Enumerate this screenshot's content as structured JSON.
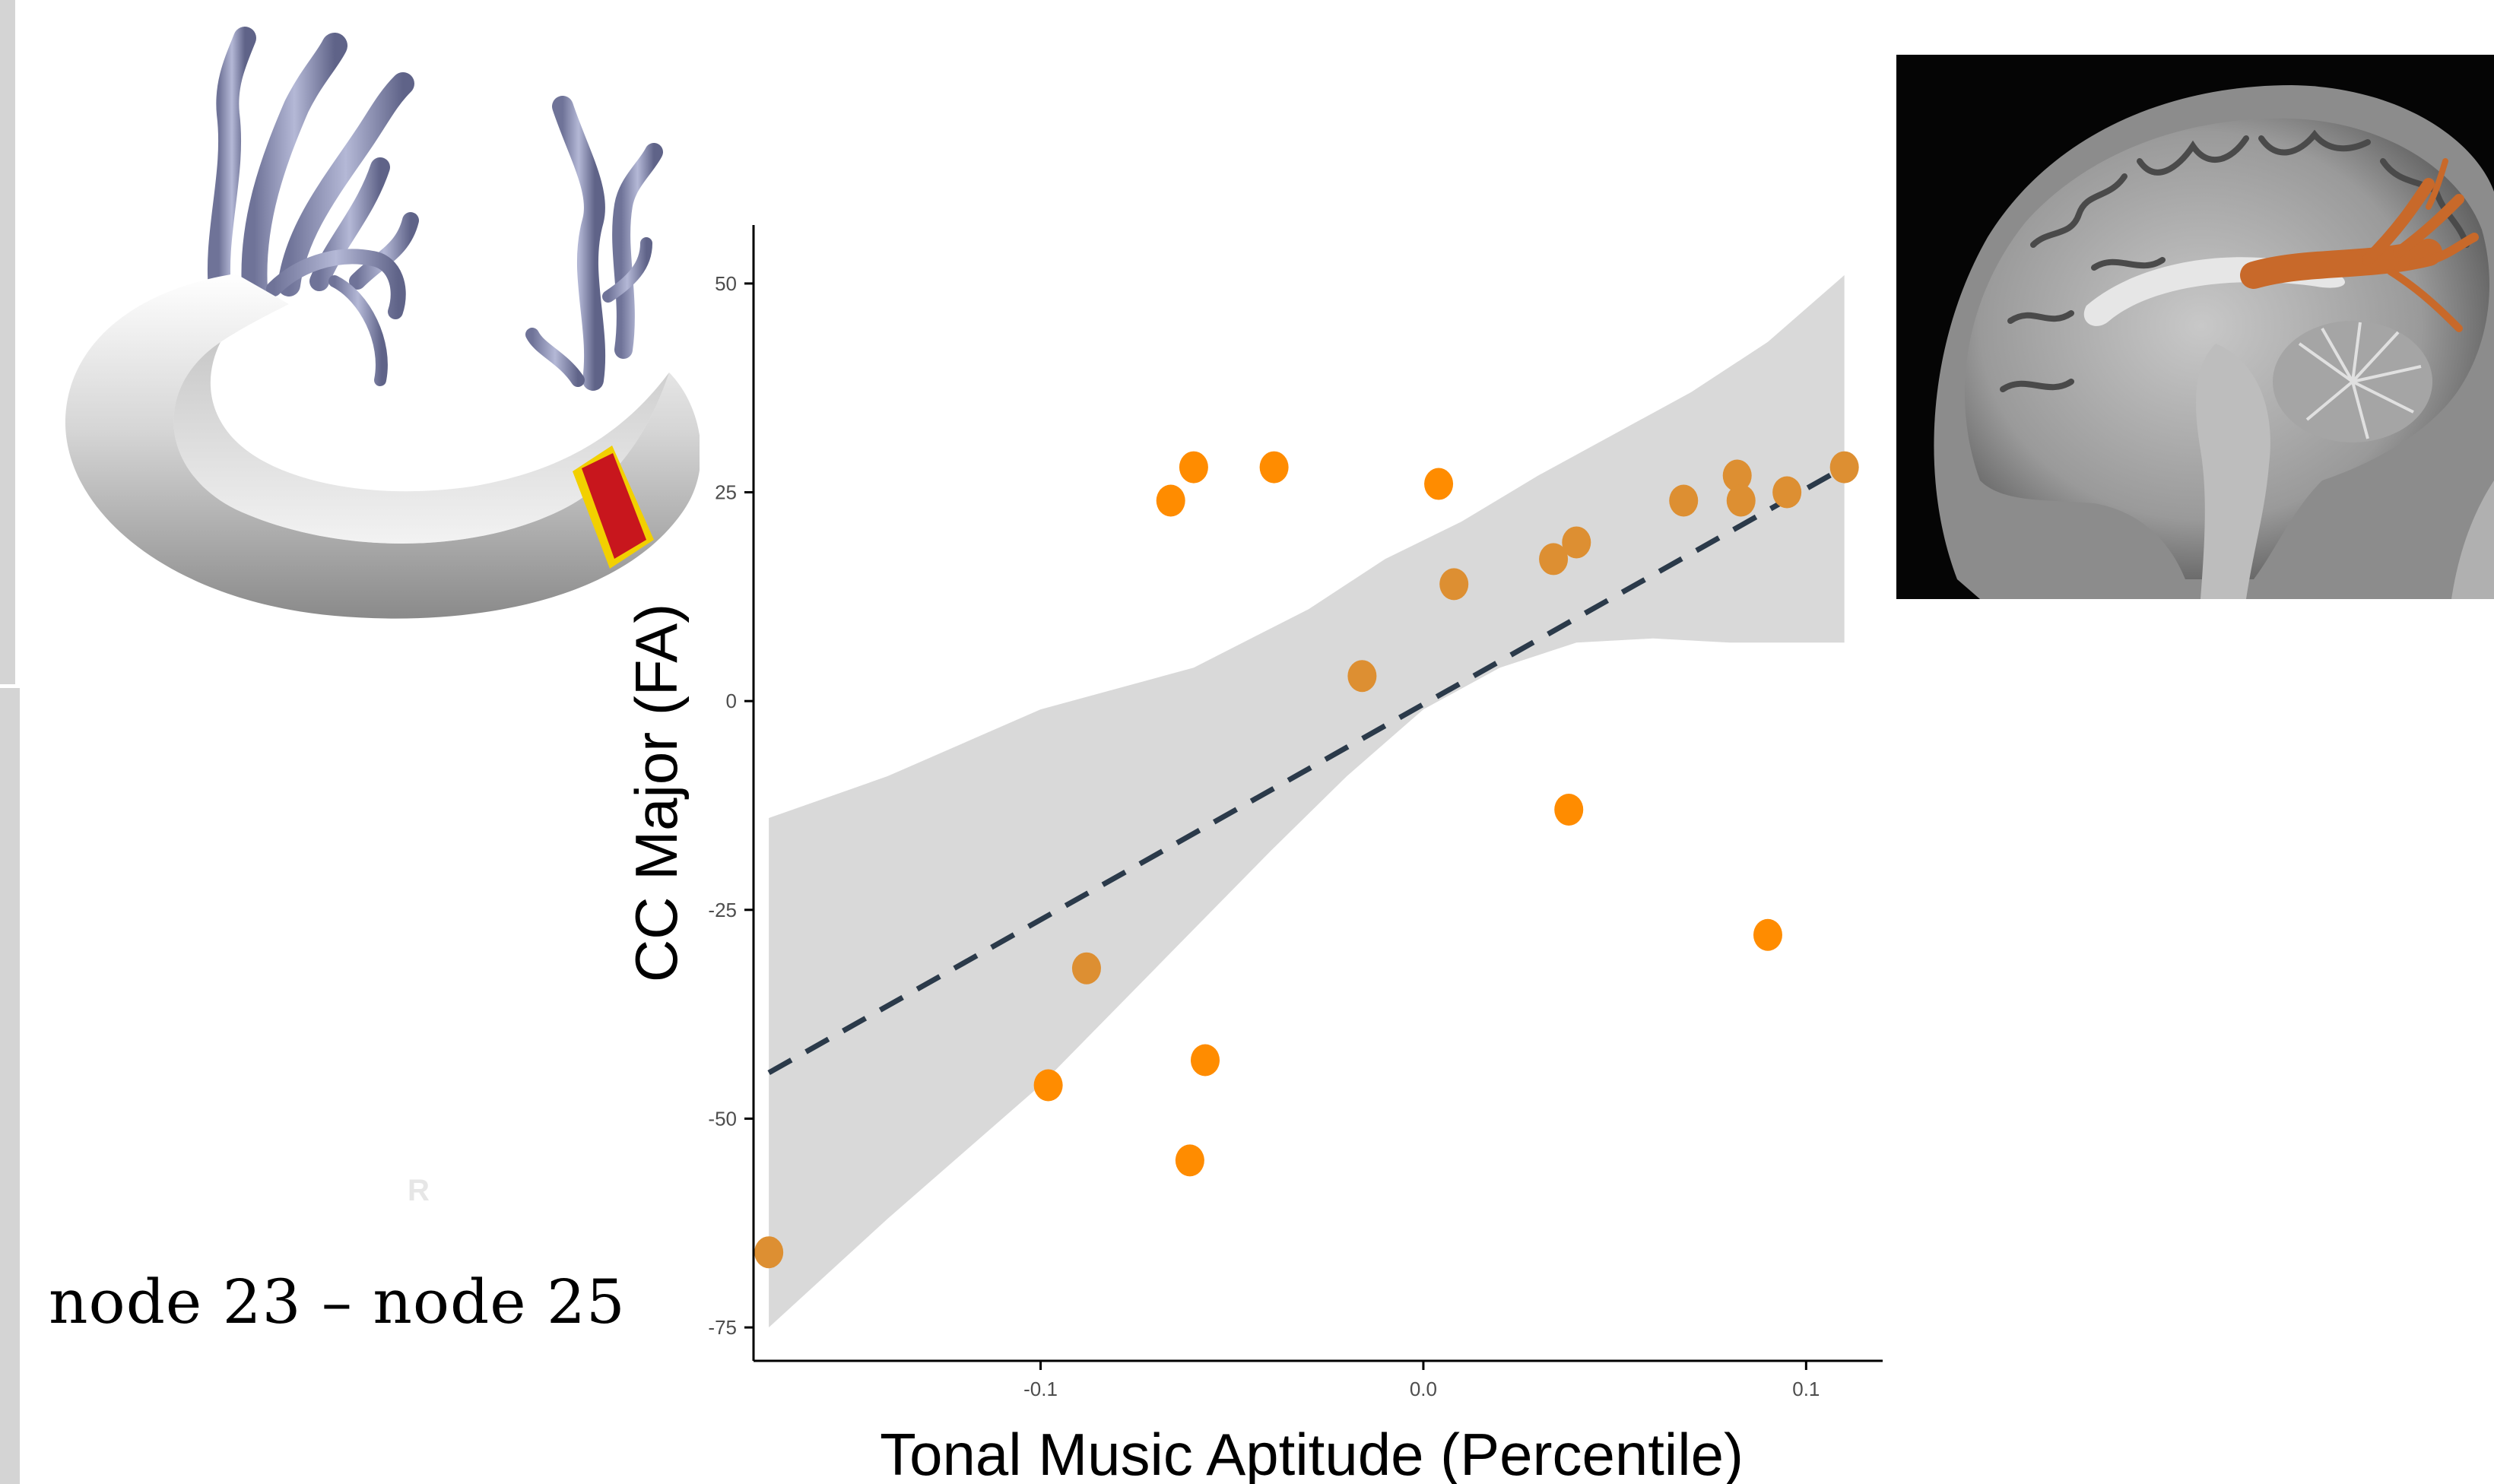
{
  "tract": {
    "node_label": "node 23 – node 25",
    "orientation_mark": "R",
    "colors": {
      "tube": "#c9c9c9",
      "fibers": "#8f93b8",
      "highlight": "#c8161d",
      "highlight_edge": "#f2d000"
    }
  },
  "mri": {
    "colors": {
      "background": "#050505",
      "tract": "#c8692a"
    }
  },
  "chart_data": {
    "type": "scatter",
    "xlabel": "Tonal Music Aptitude (Percentile)",
    "ylabel": "CC Major (FA)",
    "xlim": [
      -0.175,
      0.12
    ],
    "ylim": [
      -79,
      57
    ],
    "x_ticks": [
      -0.1,
      0.0,
      0.1
    ],
    "x_tick_labels": [
      "-0.1",
      "0.0",
      "0.1"
    ],
    "y_ticks": [
      50,
      25,
      0,
      -25,
      -50,
      -75
    ],
    "y_tick_labels": [
      "50",
      "25",
      "0",
      "-25",
      "-50",
      "-75"
    ],
    "grid": false,
    "legend": "none",
    "point_color": "#ff8c00",
    "point_color_inside_band": "#dd8f32",
    "points": [
      {
        "x": -0.171,
        "y": -66
      },
      {
        "x": -0.098,
        "y": -46
      },
      {
        "x": -0.088,
        "y": -32
      },
      {
        "x": -0.066,
        "y": 24
      },
      {
        "x": -0.06,
        "y": 28
      },
      {
        "x": -0.061,
        "y": -55
      },
      {
        "x": -0.057,
        "y": -43
      },
      {
        "x": -0.039,
        "y": 28
      },
      {
        "x": -0.016,
        "y": 3
      },
      {
        "x": 0.004,
        "y": 26
      },
      {
        "x": 0.008,
        "y": 14
      },
      {
        "x": 0.034,
        "y": 17
      },
      {
        "x": 0.04,
        "y": 19
      },
      {
        "x": 0.038,
        "y": -13
      },
      {
        "x": 0.068,
        "y": 24
      },
      {
        "x": 0.082,
        "y": 27
      },
      {
        "x": 0.083,
        "y": 24
      },
      {
        "x": 0.09,
        "y": -28
      },
      {
        "x": 0.095,
        "y": 25
      },
      {
        "x": 0.11,
        "y": 28
      }
    ],
    "regression": {
      "x_start": -0.171,
      "y_start": -44.5,
      "x_end": 0.11,
      "y_end": 28,
      "style": "dashed",
      "color": "#2b3a4a"
    },
    "confidence_band": {
      "color": "#d9d9d9",
      "upper": [
        [
          -0.171,
          -14
        ],
        [
          -0.14,
          -9
        ],
        [
          -0.1,
          -1
        ],
        [
          -0.06,
          4
        ],
        [
          -0.03,
          11
        ],
        [
          -0.01,
          17
        ],
        [
          0.01,
          21.5
        ],
        [
          0.03,
          27
        ],
        [
          0.05,
          32
        ],
        [
          0.07,
          37
        ],
        [
          0.09,
          43
        ],
        [
          0.11,
          51
        ]
      ],
      "lower": [
        [
          -0.171,
          -75
        ],
        [
          -0.14,
          -62
        ],
        [
          -0.1,
          -46
        ],
        [
          -0.07,
          -32
        ],
        [
          -0.04,
          -18
        ],
        [
          -0.02,
          -9
        ],
        [
          0.0,
          -1
        ],
        [
          0.02,
          4
        ],
        [
          0.04,
          7
        ],
        [
          0.06,
          7.5
        ],
        [
          0.08,
          7
        ],
        [
          0.11,
          7
        ]
      ]
    }
  }
}
